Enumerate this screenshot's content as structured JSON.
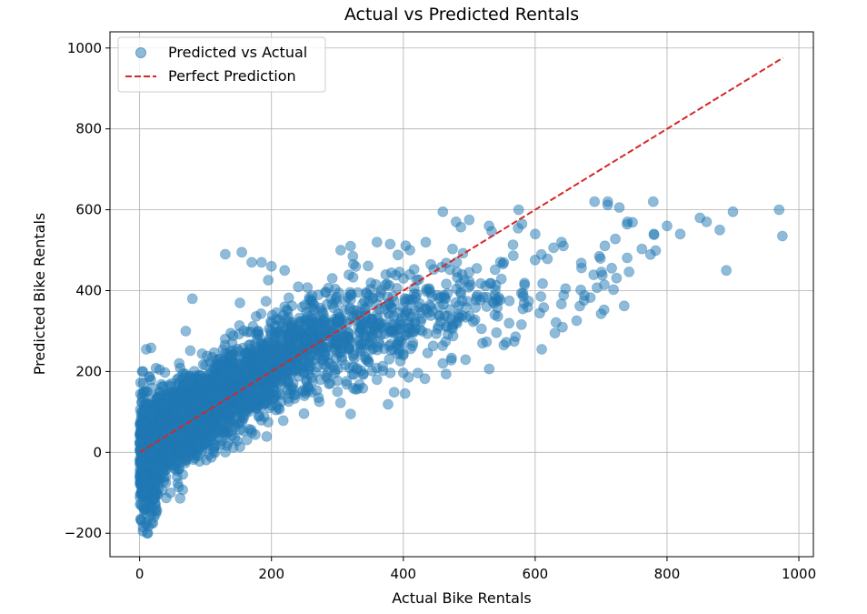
{
  "chart_data": {
    "type": "scatter",
    "title": "Actual vs Predicted Rentals",
    "xlabel": "Actual Bike Rentals",
    "ylabel": "Predicted Bike Rentals",
    "xlim": [
      -45,
      1022
    ],
    "ylim": [
      -258,
      1040
    ],
    "xticks": [
      0,
      200,
      400,
      600,
      800,
      1000
    ],
    "yticks": [
      -200,
      0,
      200,
      400,
      600,
      800,
      1000
    ],
    "grid": true,
    "legend": {
      "placement": "top-left",
      "entries": [
        "Predicted vs Actual",
        "Perfect Prediction"
      ]
    },
    "series": [
      {
        "name": "Predicted vs Actual",
        "kind": "scatter",
        "color": "#1f77b4",
        "alpha": 0.5,
        "points_sample": [
          [
            5,
            -195
          ],
          [
            5,
            -185
          ],
          [
            20,
            -175
          ],
          [
            22,
            -160
          ],
          [
            10,
            -100
          ],
          [
            8,
            -60
          ],
          [
            15,
            -30
          ],
          [
            20,
            0
          ],
          [
            10,
            50
          ],
          [
            8,
            100
          ],
          [
            12,
            150
          ],
          [
            5,
            200
          ],
          [
            10,
            255
          ],
          [
            30,
            20
          ],
          [
            40,
            80
          ],
          [
            50,
            150
          ],
          [
            60,
            220
          ],
          [
            70,
            300
          ],
          [
            80,
            380
          ],
          [
            100,
            100
          ],
          [
            120,
            180
          ],
          [
            150,
            250
          ],
          [
            180,
            300
          ],
          [
            200,
            320
          ],
          [
            220,
            360
          ],
          [
            250,
            280
          ],
          [
            280,
            300
          ],
          [
            300,
            320
          ],
          [
            330,
            350
          ],
          [
            350,
            330
          ],
          [
            130,
            490
          ],
          [
            155,
            495
          ],
          [
            170,
            470
          ],
          [
            185,
            470
          ],
          [
            200,
            460
          ],
          [
            220,
            450
          ],
          [
            305,
            500
          ],
          [
            320,
            510
          ],
          [
            360,
            520
          ],
          [
            380,
            515
          ],
          [
            410,
            500
          ],
          [
            460,
            595
          ],
          [
            480,
            570
          ],
          [
            500,
            575
          ],
          [
            530,
            560
          ],
          [
            575,
            600
          ],
          [
            580,
            565
          ],
          [
            600,
            540
          ],
          [
            640,
            520
          ],
          [
            690,
            620
          ],
          [
            710,
            612
          ],
          [
            740,
            570
          ],
          [
            780,
            540
          ],
          [
            800,
            560
          ],
          [
            820,
            540
          ],
          [
            850,
            580
          ],
          [
            860,
            570
          ],
          [
            880,
            550
          ],
          [
            890,
            450
          ],
          [
            900,
            595
          ],
          [
            970,
            600
          ],
          [
            975,
            535
          ],
          [
            320,
            95
          ],
          [
            610,
            255
          ],
          [
            630,
            295
          ],
          [
            520,
            270
          ],
          [
            460,
            220
          ],
          [
            400,
            240
          ],
          [
            360,
            180
          ],
          [
            300,
            150
          ],
          [
            250,
            140
          ],
          [
            200,
            130
          ]
        ]
      },
      {
        "name": "Perfect Prediction",
        "kind": "line",
        "color": "#d62728",
        "style": "dashed",
        "x": [
          0,
          976
        ],
        "y": [
          0,
          976
        ]
      }
    ]
  }
}
